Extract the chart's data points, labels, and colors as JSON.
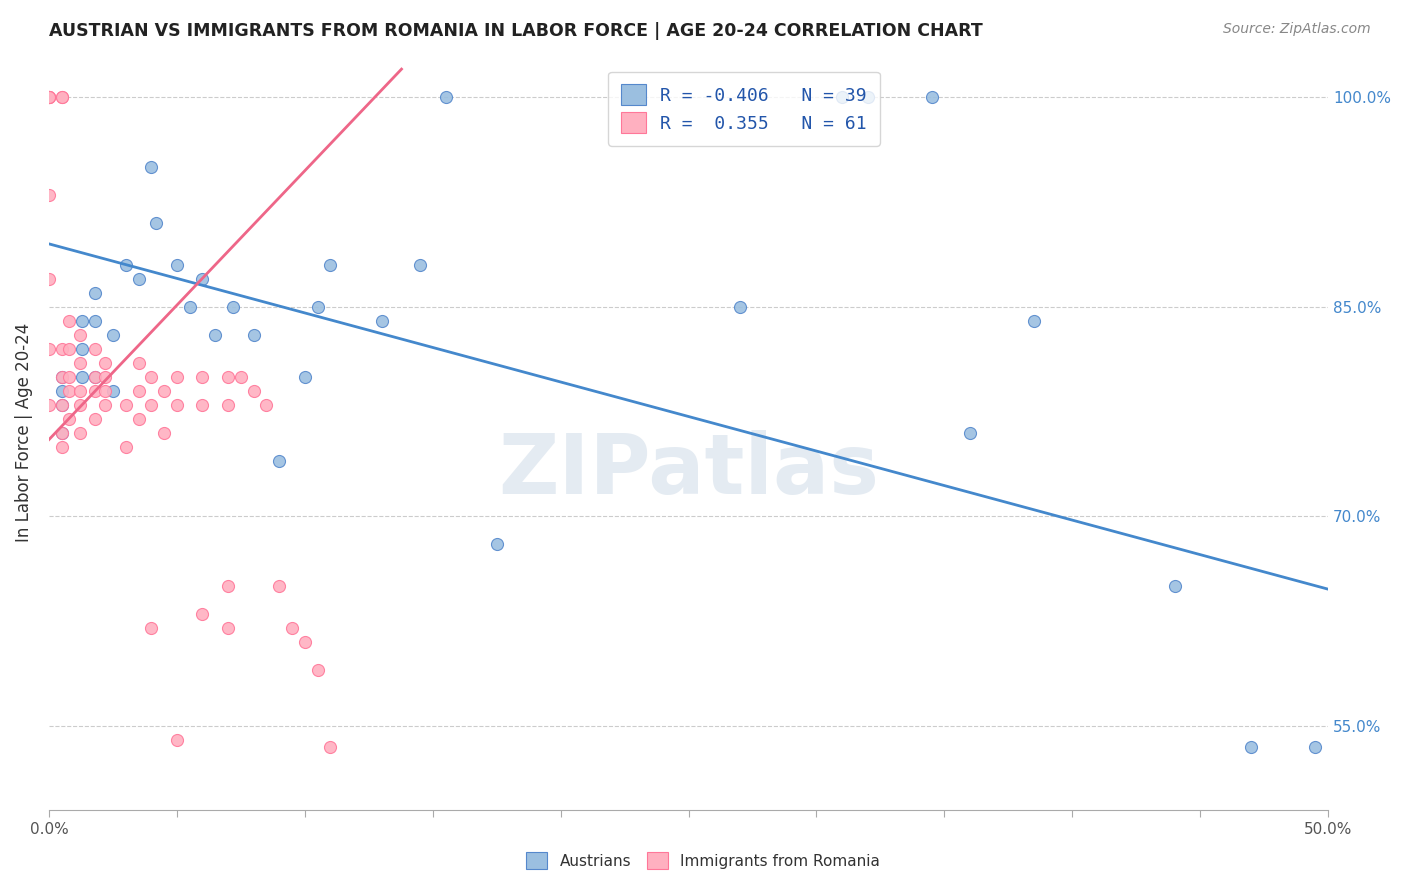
{
  "title": "AUSTRIAN VS IMMIGRANTS FROM ROMANIA IN LABOR FORCE | AGE 20-24 CORRELATION CHART",
  "source": "Source: ZipAtlas.com",
  "ylabel": "In Labor Force | Age 20-24",
  "ytick_labels": [
    "100.0%",
    "85.0%",
    "70.0%",
    "55.0%"
  ],
  "ytick_vals": [
    1.0,
    0.85,
    0.7,
    0.55
  ],
  "xlim": [
    0.0,
    0.5
  ],
  "ylim": [
    0.49,
    1.03
  ],
  "legend_blue_label": "R = -0.406   N = 39",
  "legend_pink_label": "R =  0.355   N = 61",
  "watermark": "ZIPatlas",
  "blue_marker": "#9BBFE0",
  "blue_edge": "#5588CC",
  "pink_marker": "#FFB0C0",
  "pink_edge": "#FF7799",
  "trend_blue": "#4488CC",
  "trend_pink": "#EE6688",
  "blue_line_y0": 0.895,
  "blue_line_y1": 0.648,
  "pink_line_x0": 0.0,
  "pink_line_y0": 0.755,
  "pink_line_x1": 0.13,
  "pink_line_y1": 1.005,
  "austrians_x": [
    0.005,
    0.005,
    0.005,
    0.005,
    0.013,
    0.013,
    0.013,
    0.018,
    0.018,
    0.018,
    0.025,
    0.025,
    0.03,
    0.035,
    0.04,
    0.042,
    0.05,
    0.055,
    0.06,
    0.065,
    0.072,
    0.08,
    0.09,
    0.1,
    0.105,
    0.11,
    0.13,
    0.145,
    0.155,
    0.175,
    0.27,
    0.31,
    0.32,
    0.345,
    0.36,
    0.385,
    0.44,
    0.47,
    0.495
  ],
  "austrians_y": [
    0.8,
    0.79,
    0.78,
    0.76,
    0.84,
    0.82,
    0.8,
    0.86,
    0.84,
    0.8,
    0.83,
    0.79,
    0.88,
    0.87,
    0.95,
    0.91,
    0.88,
    0.85,
    0.87,
    0.83,
    0.85,
    0.83,
    0.74,
    0.8,
    0.85,
    0.88,
    0.84,
    0.88,
    1.0,
    0.68,
    0.85,
    1.0,
    1.0,
    1.0,
    0.76,
    0.84,
    0.65,
    0.535,
    0.535
  ],
  "romania_x": [
    0.0,
    0.0,
    0.0,
    0.0,
    0.0,
    0.0,
    0.0,
    0.0,
    0.005,
    0.005,
    0.005,
    0.005,
    0.005,
    0.005,
    0.005,
    0.008,
    0.008,
    0.008,
    0.008,
    0.008,
    0.012,
    0.012,
    0.012,
    0.012,
    0.012,
    0.018,
    0.018,
    0.018,
    0.018,
    0.022,
    0.022,
    0.022,
    0.022,
    0.03,
    0.03,
    0.035,
    0.035,
    0.035,
    0.04,
    0.04,
    0.04,
    0.045,
    0.045,
    0.05,
    0.05,
    0.05,
    0.06,
    0.06,
    0.06,
    0.07,
    0.07,
    0.07,
    0.07,
    0.075,
    0.08,
    0.085,
    0.09,
    0.095,
    0.1,
    0.105,
    0.11
  ],
  "romania_y": [
    1.0,
    1.0,
    1.0,
    1.0,
    0.93,
    0.87,
    0.82,
    0.78,
    1.0,
    1.0,
    0.82,
    0.8,
    0.78,
    0.76,
    0.75,
    0.84,
    0.82,
    0.8,
    0.79,
    0.77,
    0.83,
    0.81,
    0.79,
    0.78,
    0.76,
    0.82,
    0.8,
    0.79,
    0.77,
    0.81,
    0.8,
    0.79,
    0.78,
    0.78,
    0.75,
    0.81,
    0.79,
    0.77,
    0.8,
    0.78,
    0.62,
    0.79,
    0.76,
    0.8,
    0.78,
    0.54,
    0.8,
    0.78,
    0.63,
    0.8,
    0.78,
    0.65,
    0.62,
    0.8,
    0.79,
    0.78,
    0.65,
    0.62,
    0.61,
    0.59,
    0.535
  ]
}
